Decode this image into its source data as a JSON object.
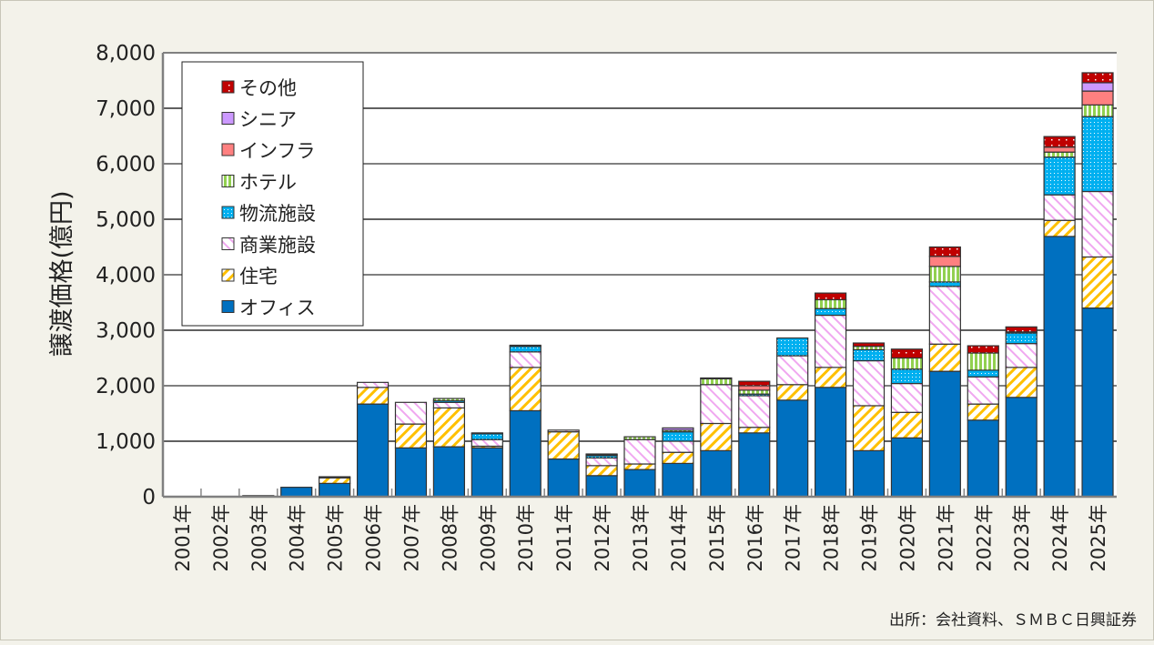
{
  "chart_data": {
    "type": "bar",
    "stacked": true,
    "ylabel": "譲渡価格(億円)",
    "ylim": [
      0,
      8000
    ],
    "yticks": [
      "0",
      "1,000",
      "2,000",
      "3,000",
      "4,000",
      "5,000",
      "6,000",
      "7,000",
      "8,000"
    ],
    "grid": true,
    "legend_position": "top-left",
    "source": "出所：会社資料、ＳＭＢＣ日興証券",
    "categories": [
      "2001年",
      "2002年",
      "2003年",
      "2004年",
      "2005年",
      "2006年",
      "2007年",
      "2008年",
      "2009年",
      "2010年",
      "2011年",
      "2012年",
      "2013年",
      "2014年",
      "2015年",
      "2016年",
      "2017年",
      "2018年",
      "2019年",
      "2020年",
      "2021年",
      "2022年",
      "2023年",
      "2024年",
      "2025年"
    ],
    "series": [
      {
        "name": "オフィス",
        "color": "#0070c0",
        "pattern": "solid",
        "values": [
          0,
          0,
          20,
          170,
          240,
          1670,
          880,
          900,
          880,
          1550,
          680,
          380,
          490,
          600,
          830,
          1150,
          1740,
          1970,
          830,
          1060,
          2260,
          1380,
          1790,
          4690,
          3400
        ]
      },
      {
        "name": "住宅",
        "color": "#ffc000",
        "pattern": "diagonal",
        "values": [
          0,
          0,
          0,
          0,
          100,
          300,
          430,
          700,
          30,
          780,
          490,
          180,
          100,
          200,
          490,
          100,
          280,
          360,
          810,
          460,
          490,
          290,
          540,
          290,
          920
        ]
      },
      {
        "name": "商業施設",
        "color": "#f0a8f0",
        "pattern": "diagonal-reverse",
        "values": [
          0,
          0,
          0,
          0,
          20,
          90,
          390,
          100,
          120,
          280,
          30,
          140,
          440,
          200,
          700,
          570,
          520,
          940,
          810,
          520,
          1040,
          490,
          430,
          460,
          1180
        ]
      },
      {
        "name": "物流施設",
        "color": "#00b0f0",
        "pattern": "dots",
        "values": [
          0,
          0,
          0,
          0,
          0,
          0,
          0,
          30,
          110,
          100,
          0,
          40,
          0,
          170,
          0,
          30,
          320,
          120,
          200,
          260,
          80,
          120,
          190,
          680,
          1350
        ]
      },
      {
        "name": "ホテル",
        "color": "#92d050",
        "pattern": "vertical",
        "values": [
          0,
          0,
          0,
          0,
          0,
          0,
          0,
          40,
          0,
          0,
          0,
          20,
          50,
          30,
          110,
          70,
          0,
          160,
          60,
          200,
          280,
          310,
          20,
          90,
          210
        ]
      },
      {
        "name": "インフラ",
        "color": "#ff8080",
        "pattern": "solid",
        "values": [
          0,
          0,
          0,
          0,
          0,
          0,
          0,
          0,
          0,
          0,
          0,
          0,
          0,
          0,
          0,
          80,
          0,
          0,
          0,
          0,
          180,
          0,
          0,
          90,
          250
        ]
      },
      {
        "name": "シニア",
        "color": "#cc99ff",
        "pattern": "solid",
        "values": [
          0,
          0,
          0,
          0,
          0,
          0,
          0,
          0,
          0,
          0,
          0,
          0,
          0,
          40,
          0,
          0,
          0,
          0,
          0,
          0,
          0,
          0,
          0,
          0,
          150
        ]
      },
      {
        "name": "その他",
        "color": "#c00000",
        "pattern": "dots-red",
        "values": [
          0,
          0,
          0,
          0,
          0,
          0,
          0,
          0,
          10,
          20,
          0,
          10,
          0,
          0,
          10,
          80,
          0,
          120,
          60,
          160,
          170,
          130,
          90,
          190,
          180
        ]
      }
    ]
  }
}
